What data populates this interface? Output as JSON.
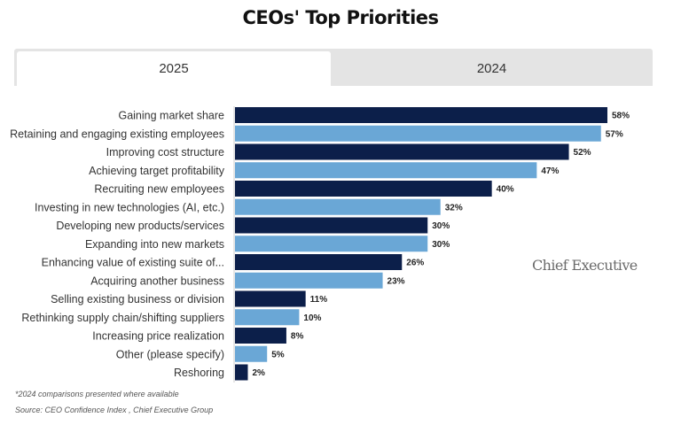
{
  "page": {
    "title": "CEOs' Top Priorities",
    "tabs": [
      {
        "label": "2025",
        "active": true
      },
      {
        "label": "2024",
        "active": false
      }
    ],
    "footnotes": [
      "*2024 comparisons presented where available",
      "Source: CEO Confidence Index , Chief Executive Group"
    ],
    "brand": "Chief Executive"
  },
  "chart_data": {
    "type": "bar",
    "orientation": "horizontal",
    "title": "CEOs' Top Priorities",
    "xlabel": "",
    "ylabel": "",
    "xlim": [
      0,
      58
    ],
    "grid": false,
    "categories": [
      "Gaining market share",
      "Retaining and engaging existing employees",
      "Improving cost structure",
      "Achieving target profitability",
      "Recruiting new employees",
      "Investing in new technologies (AI, etc.)",
      "Developing new products/services",
      "Expanding into new markets",
      "Enhancing value of existing suite of...",
      "Acquiring another business",
      "Selling existing business or division",
      "Rethinking supply chain/shifting suppliers",
      "Increasing price realization",
      "Other (please specify)",
      "Reshoring"
    ],
    "values": [
      58,
      57,
      52,
      47,
      40,
      32,
      30,
      30,
      26,
      23,
      11,
      10,
      8,
      5,
      2
    ],
    "value_labels": [
      "58%",
      "57%",
      "52%",
      "47%",
      "40%",
      "32%",
      "30%",
      "30%",
      "26%",
      "23%",
      "11%",
      "10%",
      "8%",
      "5%",
      "2%"
    ],
    "colors": [
      "#0c1f4a",
      "#6aa7d6"
    ],
    "color_pattern": "alternating"
  }
}
